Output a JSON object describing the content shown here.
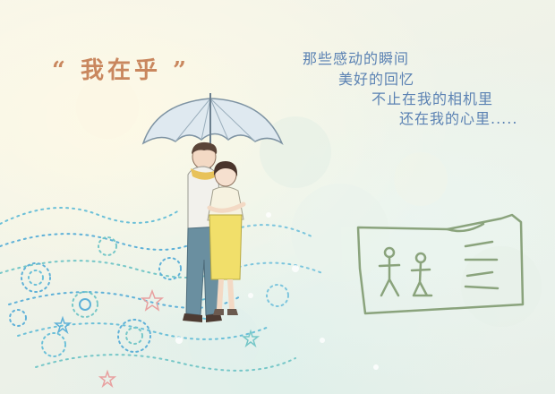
{
  "title": "“ 我在乎 ”",
  "poem": {
    "line1": "那些感动的瞬间",
    "line2": "美好的回忆",
    "line3": "不止在我的相机里",
    "line4": "还在我的心里....."
  },
  "colors": {
    "title": "#c9875e",
    "poem": "#5b82b3",
    "umbrella": "#dfe9f0",
    "dress": "#f1df6a",
    "jeans": "#6a8fa0",
    "swirl_blue": "#5fb1d8",
    "sketch": "#8aa37c"
  },
  "icons": [
    "umbrella-icon",
    "couple-illustration",
    "stick-figure-sketch"
  ]
}
